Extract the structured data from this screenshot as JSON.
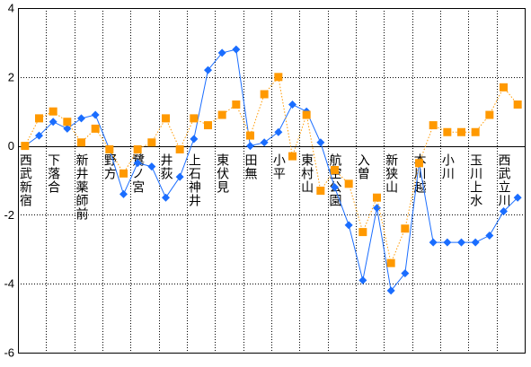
{
  "chart_data": {
    "type": "line",
    "categories": [
      "西武新宿",
      "",
      "下落合",
      "",
      "新井薬師前",
      "",
      "野方",
      "",
      "鷺ノ宮",
      "",
      "井荻",
      "",
      "上石神井",
      "",
      "東伏見",
      "",
      "田無",
      "",
      "小平",
      "",
      "東村山",
      "",
      "航空公園",
      "",
      "入曽",
      "",
      "新狭山",
      "",
      "本川越",
      "",
      "小川",
      "",
      "玉川上水",
      "",
      "西武立川",
      ""
    ],
    "series": [
      {
        "color": "#1a6dff",
        "marker": "diamond",
        "line_style": "solid",
        "values": [
          0.0,
          0.3,
          0.7,
          0.5,
          0.8,
          0.9,
          -0.1,
          -1.4,
          -0.5,
          -0.6,
          -1.5,
          -0.9,
          0.2,
          2.2,
          2.7,
          2.8,
          0.0,
          0.1,
          0.4,
          1.2,
          1.0,
          0.1,
          -1.2,
          -2.3,
          -3.9,
          -1.8,
          -4.2,
          -3.7,
          -0.5,
          -2.8,
          -2.8,
          -2.8,
          -2.8,
          -2.6,
          -1.9,
          -1.5
        ]
      },
      {
        "color": "#ff9900",
        "marker": "square",
        "line_style": "dotted",
        "values": [
          0.0,
          0.8,
          1.0,
          0.7,
          0.1,
          0.5,
          -0.1,
          -0.8,
          -0.1,
          0.1,
          0.8,
          -0.1,
          0.8,
          0.6,
          0.9,
          1.2,
          0.3,
          1.5,
          2.0,
          -0.3,
          0.9,
          -1.3,
          -0.7,
          -1.1,
          -2.5,
          -1.5,
          -3.4,
          -2.4,
          -0.5,
          0.6,
          0.4,
          0.4,
          0.4,
          0.9,
          1.7,
          1.2
        ]
      }
    ],
    "ylim": [
      -6,
      4
    ],
    "yticks": [
      4,
      2,
      0,
      -2,
      -4,
      -6
    ],
    "grid": true
  }
}
